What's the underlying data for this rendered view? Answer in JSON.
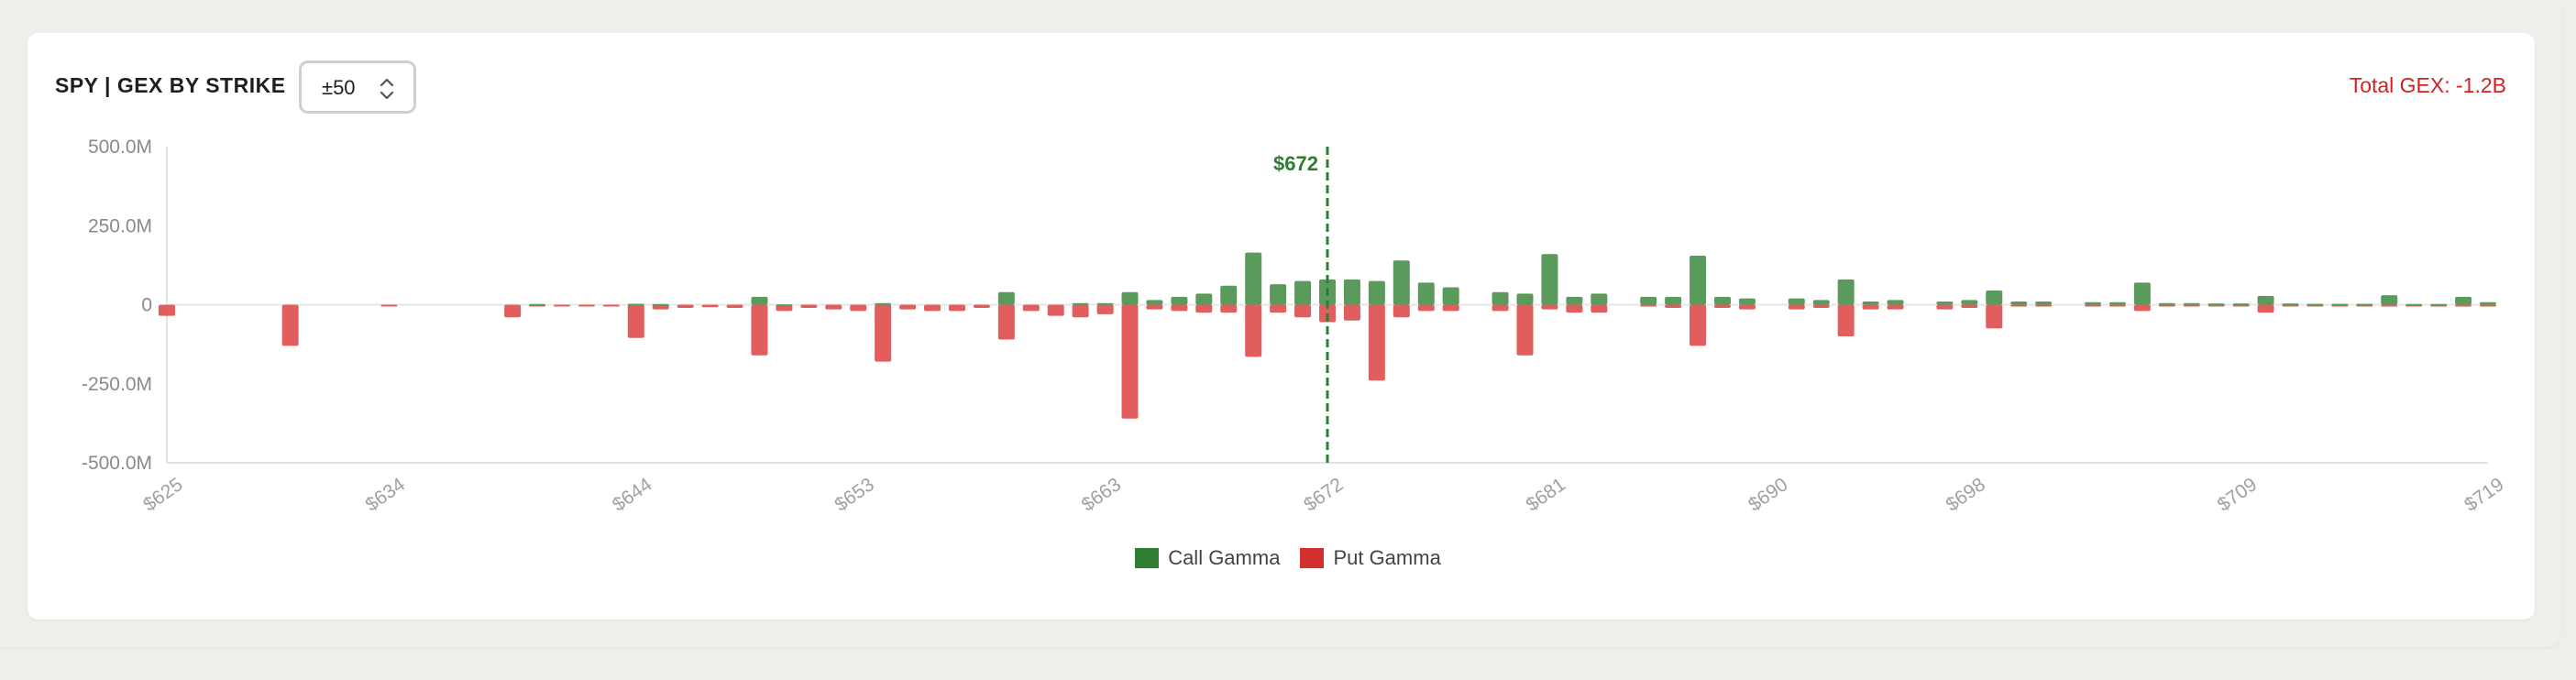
{
  "header": {
    "title": "SPY | GEX BY STRIKE",
    "range_value": "±50",
    "total_label": "Total GEX:",
    "total_value": "-1.2B"
  },
  "colors": {
    "call": "#5a9a5c",
    "put": "#e25d5d",
    "legend_call": "#2e7d32",
    "legend_put": "#d32f2f",
    "spot_line": "#2e7d32",
    "total": "#d42222"
  },
  "chart_data": {
    "type": "bar",
    "stacked_diverging": true,
    "x_range": [
      625,
      719
    ],
    "ylim": [
      -500,
      500
    ],
    "y_unit": "M",
    "y_ticks": [
      {
        "value": 500,
        "label": "500.0M"
      },
      {
        "value": 250,
        "label": "250.0M"
      },
      {
        "value": 0,
        "label": "0"
      },
      {
        "value": -250,
        "label": "-250.0M"
      },
      {
        "value": -500,
        "label": "-500.0M"
      }
    ],
    "x_ticks": [
      "$625",
      "$634",
      "$644",
      "$653",
      "$663",
      "$672",
      "$681",
      "$690",
      "$698",
      "$709",
      "$719"
    ],
    "x_tick_values": [
      625,
      634,
      644,
      653,
      663,
      672,
      681,
      690,
      698,
      709,
      719
    ],
    "spot": {
      "value": 672,
      "label": "$672"
    },
    "legend": [
      "Call Gamma",
      "Put Gamma"
    ],
    "series": [
      {
        "name": "Call Gamma",
        "points": [
          [
            625,
            0
          ],
          [
            630,
            0
          ],
          [
            634,
            0
          ],
          [
            639,
            0
          ],
          [
            640,
            2
          ],
          [
            641,
            0
          ],
          [
            642,
            0
          ],
          [
            643,
            0
          ],
          [
            644,
            3
          ],
          [
            645,
            2
          ],
          [
            646,
            0
          ],
          [
            647,
            0
          ],
          [
            648,
            0
          ],
          [
            649,
            25
          ],
          [
            650,
            1
          ],
          [
            651,
            0
          ],
          [
            652,
            0
          ],
          [
            653,
            0
          ],
          [
            654,
            5
          ],
          [
            655,
            0
          ],
          [
            656,
            0
          ],
          [
            657,
            0
          ],
          [
            658,
            0
          ],
          [
            659,
            40
          ],
          [
            660,
            0
          ],
          [
            661,
            0
          ],
          [
            662,
            5
          ],
          [
            663,
            5
          ],
          [
            664,
            40
          ],
          [
            665,
            15
          ],
          [
            666,
            25
          ],
          [
            667,
            35
          ],
          [
            668,
            60
          ],
          [
            669,
            165
          ],
          [
            670,
            65
          ],
          [
            671,
            75
          ],
          [
            672,
            80
          ],
          [
            673,
            80
          ],
          [
            674,
            75
          ],
          [
            675,
            140
          ],
          [
            676,
            70
          ],
          [
            677,
            55
          ],
          [
            679,
            40
          ],
          [
            680,
            35
          ],
          [
            681,
            160
          ],
          [
            682,
            25
          ],
          [
            683,
            35
          ],
          [
            685,
            25
          ],
          [
            686,
            25
          ],
          [
            687,
            155
          ],
          [
            688,
            25
          ],
          [
            689,
            20
          ],
          [
            691,
            20
          ],
          [
            692,
            15
          ],
          [
            693,
            80
          ],
          [
            694,
            10
          ],
          [
            695,
            15
          ],
          [
            697,
            10
          ],
          [
            698,
            15
          ],
          [
            699,
            45
          ],
          [
            700,
            10
          ],
          [
            701,
            10
          ],
          [
            703,
            8
          ],
          [
            704,
            8
          ],
          [
            705,
            70
          ],
          [
            706,
            5
          ],
          [
            707,
            5
          ],
          [
            708,
            4
          ],
          [
            709,
            4
          ],
          [
            710,
            28
          ],
          [
            711,
            4
          ],
          [
            712,
            3
          ],
          [
            713,
            3
          ],
          [
            714,
            3
          ],
          [
            715,
            30
          ],
          [
            716,
            2
          ],
          [
            717,
            2
          ],
          [
            718,
            25
          ],
          [
            719,
            8
          ]
        ]
      },
      {
        "name": "Put Gamma",
        "points": [
          [
            625,
            -35
          ],
          [
            630,
            -130
          ],
          [
            634,
            -3
          ],
          [
            639,
            -40
          ],
          [
            640,
            -3
          ],
          [
            641,
            -3
          ],
          [
            642,
            -3
          ],
          [
            643,
            -5
          ],
          [
            644,
            -105
          ],
          [
            645,
            -15
          ],
          [
            646,
            -10
          ],
          [
            647,
            -8
          ],
          [
            648,
            -10
          ],
          [
            649,
            -160
          ],
          [
            650,
            -20
          ],
          [
            651,
            -10
          ],
          [
            652,
            -15
          ],
          [
            653,
            -20
          ],
          [
            654,
            -180
          ],
          [
            655,
            -15
          ],
          [
            656,
            -20
          ],
          [
            657,
            -20
          ],
          [
            658,
            -10
          ],
          [
            659,
            -110
          ],
          [
            660,
            -20
          ],
          [
            661,
            -35
          ],
          [
            662,
            -40
          ],
          [
            663,
            -30
          ],
          [
            664,
            -360
          ],
          [
            665,
            -15
          ],
          [
            666,
            -20
          ],
          [
            667,
            -25
          ],
          [
            668,
            -25
          ],
          [
            669,
            -165
          ],
          [
            670,
            -25
          ],
          [
            671,
            -40
          ],
          [
            672,
            -55
          ],
          [
            673,
            -50
          ],
          [
            674,
            -240
          ],
          [
            675,
            -40
          ],
          [
            676,
            -20
          ],
          [
            677,
            -20
          ],
          [
            679,
            -20
          ],
          [
            680,
            -160
          ],
          [
            681,
            -15
          ],
          [
            682,
            -25
          ],
          [
            683,
            -25
          ],
          [
            685,
            -5
          ],
          [
            686,
            -10
          ],
          [
            687,
            -130
          ],
          [
            688,
            -10
          ],
          [
            689,
            -15
          ],
          [
            691,
            -15
          ],
          [
            692,
            -10
          ],
          [
            693,
            -100
          ],
          [
            694,
            -15
          ],
          [
            695,
            -15
          ],
          [
            697,
            -15
          ],
          [
            698,
            -10
          ],
          [
            699,
            -75
          ],
          [
            700,
            -5
          ],
          [
            701,
            -5
          ],
          [
            703,
            -5
          ],
          [
            704,
            -5
          ],
          [
            705,
            -20
          ],
          [
            706,
            -5
          ],
          [
            707,
            -5
          ],
          [
            708,
            -3
          ],
          [
            709,
            -3
          ],
          [
            710,
            -25
          ],
          [
            711,
            -3
          ],
          [
            712,
            -3
          ],
          [
            713,
            -3
          ],
          [
            714,
            -3
          ],
          [
            715,
            -5
          ],
          [
            716,
            -2
          ],
          [
            717,
            -2
          ],
          [
            718,
            -3
          ],
          [
            719,
            -2
          ]
        ]
      }
    ]
  }
}
